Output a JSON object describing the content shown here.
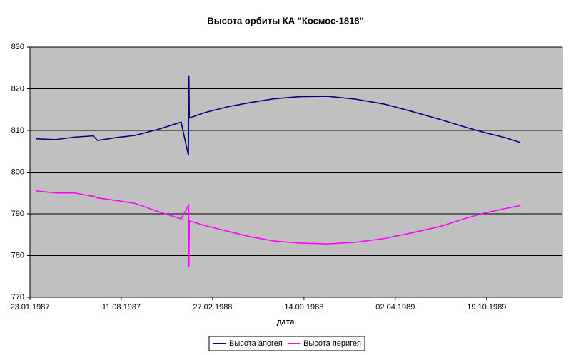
{
  "chart_data": {
    "type": "line",
    "title": "Высота орбиты КА \"Космос-1818\"",
    "x_label": "дата",
    "x": [
      "1987-02-05",
      "1987-03-20",
      "1987-05-01",
      "1987-06-10",
      "1987-06-20",
      "1987-08-01",
      "1987-09-10",
      "1987-11-01",
      "1987-12-20",
      "1988-01-05",
      "1988-01-06",
      "1988-01-07",
      "1988-02-10",
      "1988-04-01",
      "1988-05-20",
      "1988-07-10",
      "1988-09-05",
      "1988-11-05",
      "1989-01-05",
      "1989-03-10",
      "1989-05-10",
      "1989-07-10",
      "1989-09-05",
      "1989-10-15",
      "1989-12-01",
      "1990-01-01"
    ],
    "series": [
      {
        "name": "Высота апогея",
        "color": "#000080",
        "values": [
          808.0,
          807.8,
          808.4,
          808.7,
          807.6,
          808.3,
          808.8,
          810.3,
          812.0,
          804.0,
          823.2,
          813.0,
          814.3,
          815.7,
          816.7,
          817.6,
          818.1,
          818.2,
          817.5,
          816.3,
          814.5,
          812.6,
          810.7,
          809.5,
          808.2,
          807.1
        ]
      },
      {
        "name": "Высота перигея",
        "color": "#ff00ff",
        "values": [
          795.5,
          795.0,
          795.0,
          794.2,
          793.8,
          793.2,
          792.5,
          790.5,
          788.8,
          792.0,
          777.2,
          788.3,
          787.2,
          785.8,
          784.5,
          783.5,
          783.0,
          782.8,
          783.2,
          784.1,
          785.5,
          787.0,
          789.0,
          790.2,
          791.3,
          792.0
        ]
      }
    ],
    "xlim": [
      "1987-01-23",
      "1990-04-03"
    ],
    "xticks": [
      {
        "value": "1987-01-23",
        "label": "23.01.1987"
      },
      {
        "value": "1987-08-11",
        "label": "11.08.1987"
      },
      {
        "value": "1988-02-27",
        "label": "27.02.1988"
      },
      {
        "value": "1988-09-14",
        "label": "14.09.1988"
      },
      {
        "value": "1989-04-02",
        "label": "02.04.1989"
      },
      {
        "value": "1989-10-19",
        "label": "19.10.1989"
      }
    ],
    "ylim": [
      770,
      830
    ],
    "yticks": [
      770,
      780,
      790,
      800,
      810,
      820,
      830
    ],
    "grid": true,
    "legend": "bottom"
  }
}
